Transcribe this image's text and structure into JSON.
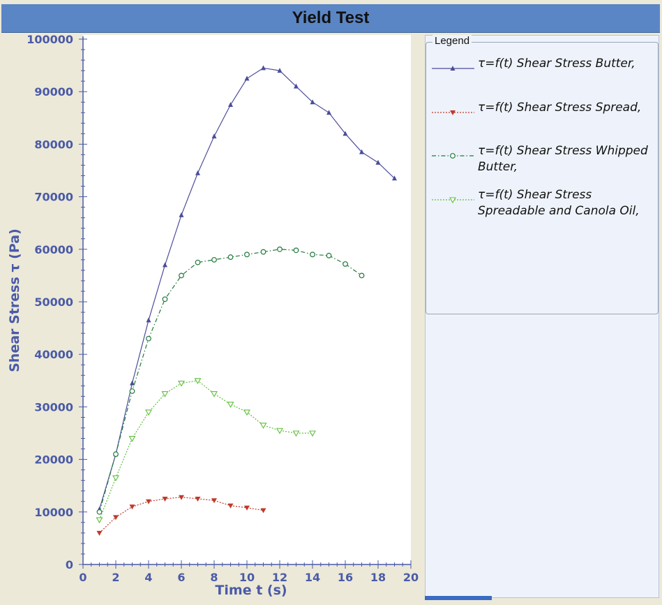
{
  "window": {
    "title": "Yield Test"
  },
  "legend": {
    "title": "Legend",
    "items": [
      {
        "label": "τ=f(t) Shear Stress Butter,",
        "color": "#4c4c9c",
        "marker": "star-triangle",
        "dash": "solid"
      },
      {
        "label": "τ=f(t) Shear Stress Spread,",
        "color": "#c0392b",
        "marker": "filled-triangle-down",
        "dash": "dotted"
      },
      {
        "label": "τ=f(t) Shear Stress Whipped Butter,",
        "color": "#1f7a3a",
        "marker": "circle",
        "dash": "dashdot"
      },
      {
        "label": "τ=f(t) Shear Stress Spreadable and Canola Oil,",
        "color": "#5fbf3a",
        "marker": "triangle-down-open",
        "dash": "dotted"
      }
    ]
  },
  "chart_data": {
    "type": "line",
    "title": "Yield Test",
    "xlabel": "Time t (s)",
    "ylabel": "Shear Stress τ (Pa)",
    "xlim": [
      0,
      20
    ],
    "ylim": [
      0,
      100000
    ],
    "xticks": [
      0,
      2,
      4,
      6,
      8,
      10,
      12,
      14,
      16,
      18,
      20
    ],
    "yticks": [
      0,
      10000,
      20000,
      30000,
      40000,
      50000,
      60000,
      70000,
      80000,
      90000,
      100000
    ],
    "grid": false,
    "legend_position": "right",
    "series": [
      {
        "name": "τ=f(t) Shear Stress Butter,",
        "color": "#4c4c9c",
        "x": [
          1,
          2,
          3,
          4,
          5,
          6,
          7,
          8,
          9,
          10,
          11,
          12,
          13,
          14,
          15,
          16,
          17,
          18,
          19
        ],
        "y": [
          10500,
          21000,
          34500,
          46500,
          57000,
          66500,
          74500,
          81500,
          87500,
          92500,
          94500,
          94000,
          91000,
          88000,
          86000,
          82000,
          78500,
          76500,
          73500
        ]
      },
      {
        "name": "τ=f(t) Shear Stress Spread,",
        "color": "#c0392b",
        "x": [
          1,
          2,
          3,
          4,
          5,
          6,
          7,
          8,
          9,
          10,
          11
        ],
        "y": [
          6000,
          9000,
          11000,
          12000,
          12500,
          12800,
          12500,
          12200,
          11200,
          10800,
          10300
        ]
      },
      {
        "name": "τ=f(t) Shear Stress Whipped Butter,",
        "color": "#1f7a3a",
        "x": [
          1,
          2,
          3,
          4,
          5,
          6,
          7,
          8,
          9,
          10,
          11,
          12,
          13,
          14,
          15,
          16,
          17
        ],
        "y": [
          10000,
          21000,
          33000,
          43000,
          50500,
          55000,
          57500,
          58000,
          58500,
          59000,
          59500,
          60000,
          59800,
          59000,
          58800,
          57200,
          55000
        ]
      },
      {
        "name": "τ=f(t) Shear Stress Spreadable and Canola Oil,",
        "color": "#5fbf3a",
        "x": [
          1,
          2,
          3,
          4,
          5,
          6,
          7,
          8,
          9,
          10,
          11,
          12,
          13,
          14
        ],
        "y": [
          8500,
          16500,
          24000,
          29000,
          32500,
          34500,
          35000,
          32500,
          30500,
          29000,
          26500,
          25500,
          25000,
          25000
        ]
      }
    ]
  }
}
